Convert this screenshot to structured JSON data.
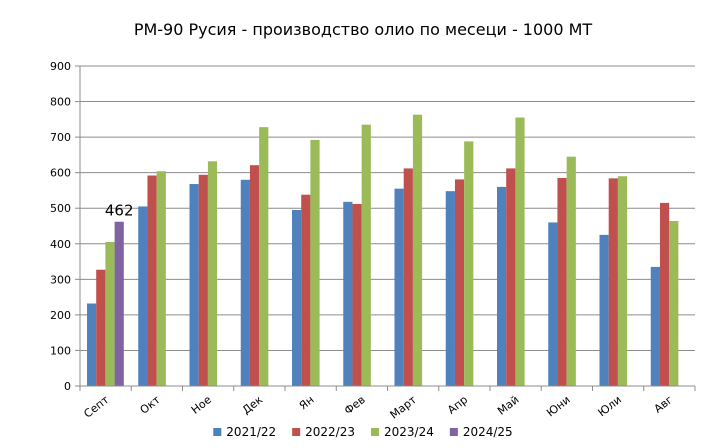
{
  "chart_data": {
    "type": "bar",
    "title": "РМ-90  Русия - производство олио по месеци - 1000 МТ",
    "xlabel": "",
    "ylabel": "",
    "ylim": [
      0,
      900
    ],
    "yticks": [
      0,
      100,
      200,
      300,
      400,
      500,
      600,
      700,
      800,
      900
    ],
    "grid": true,
    "legend_position": "bottom",
    "categories": [
      "Септ",
      "Окт",
      "Ное",
      "Дек",
      "Ян",
      "Фев",
      "Март",
      "Апр",
      "Май",
      "Юни",
      "Юли",
      "Авг"
    ],
    "series": [
      {
        "name": "2021/22",
        "color": "#4f81bd",
        "values": [
          232,
          505,
          568,
          580,
          495,
          518,
          555,
          548,
          560,
          460,
          425,
          335
        ]
      },
      {
        "name": "2022/23",
        "color": "#c0504d",
        "values": [
          327,
          592,
          594,
          621,
          538,
          512,
          612,
          581,
          612,
          585,
          584,
          515
        ]
      },
      {
        "name": "2023/24",
        "color": "#9bbb59",
        "values": [
          405,
          604,
          632,
          728,
          692,
          735,
          763,
          688,
          755,
          645,
          590,
          464
        ]
      },
      {
        "name": "2024/25",
        "color": "#8064a2",
        "values": [
          462,
          null,
          null,
          null,
          null,
          null,
          null,
          null,
          null,
          null,
          null,
          null
        ]
      }
    ],
    "annotations": [
      {
        "text": "462",
        "series": "2024/25",
        "category": "Септ"
      }
    ]
  }
}
